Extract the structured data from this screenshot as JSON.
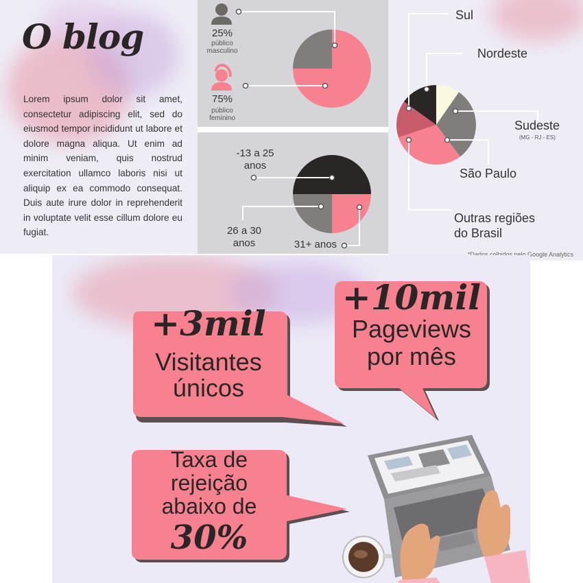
{
  "blog": {
    "title": "O blog",
    "body": "Lorem ipsum dolor sit amet, consectetur adipiscing  elit, sed do eiusmod tempor incididunt ut labore et dolore magna aliqua. Ut enim ad minim veniam, quis nostrud exercitation ullamco laboris nisi ut aliquip ex ea commodo consequat. Duis aute irure dolor in reprehenderit in voluptate velit esse cillum dolore eu fugiat."
  },
  "gender": {
    "male_pct": "25%",
    "male_label_1": "público",
    "male_label_2": "masculino",
    "female_pct": "75%",
    "female_label_1": "público",
    "female_label_2": "feminino"
  },
  "age": {
    "group1_line1": "-13 a 25",
    "group1_line2": "anos",
    "group2_line1": "26 a 30",
    "group2_line2": "anos",
    "group3": "31+ anos"
  },
  "regions": {
    "sul": "Sul",
    "nordeste": "Nordeste",
    "sudeste": "Sudeste",
    "sudeste_sub": "(MG - RJ - ES)",
    "sao_paulo": "São Paulo",
    "outras_1": "Outras regiões",
    "outras_2": "do Brasil",
    "footnote_prefix": "*Dados colhidos pelo ",
    "footnote_source": "Google Analytics"
  },
  "stats": {
    "visitors_number": "+3mil",
    "visitors_line1": "Visitantes",
    "visitors_line2": "únicos",
    "pageviews_number": "+10mil",
    "pageviews_line1": "Pageviews",
    "pageviews_line2": "por mês",
    "bounce_line1": "Taxa de",
    "bounce_line2": "rejeição",
    "bounce_line3": "abaixo de",
    "bounce_value": "30%"
  },
  "chart_data": [
    {
      "type": "pie",
      "categories": [
        "público masculino",
        "público feminino"
      ],
      "values": [
        25,
        75
      ],
      "colors": [
        "#7f7e7a",
        "#f7818f"
      ]
    },
    {
      "type": "pie",
      "categories": [
        "-13 a 25 anos",
        "26 a 30 anos",
        "31+ anos"
      ],
      "values": [
        50,
        25,
        25
      ],
      "colors": [
        "#2a2626",
        "#7f7e7a",
        "#f7818f"
      ]
    },
    {
      "type": "pie",
      "categories": [
        "Sudeste",
        "São Paulo",
        "Outras regiões do Brasil",
        "Sul",
        "Nordeste"
      ],
      "values": [
        25,
        25,
        12.5,
        12.5,
        8
      ],
      "colors": [
        "#7f7e7a",
        "#f7818f",
        "#c95c6a",
        "#2a2626",
        "#fbf8e2"
      ]
    }
  ],
  "colors": {
    "pink": "#f7818f",
    "gray": "#7f7e7a",
    "dark": "#2a2626",
    "cream": "#fbf8e2",
    "panel_gray": "#d5d4d9",
    "panel_light": "#eeedf6"
  }
}
